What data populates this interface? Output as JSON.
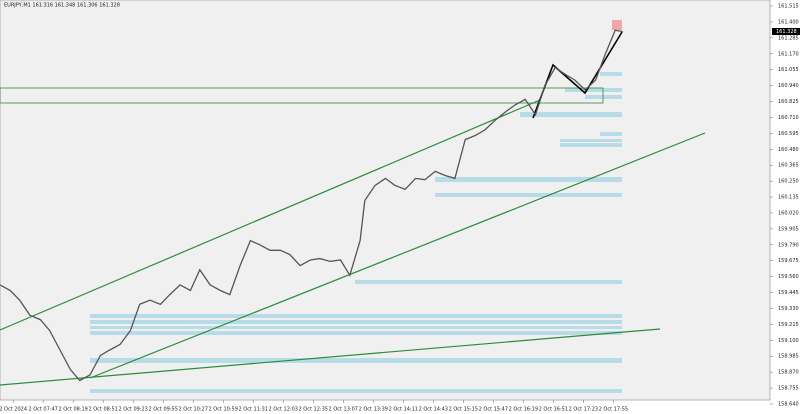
{
  "chart_data": {
    "type": "line",
    "title": "EURJPY,M1 161.316 161.348 161.306 161.328",
    "price_label": "161.328",
    "x": [
      -14,
      -3,
      7,
      18,
      29,
      39,
      50,
      61,
      71,
      82,
      93,
      103,
      114,
      125,
      135,
      146,
      157,
      167,
      178,
      189,
      199,
      210,
      221,
      231,
      242,
      253,
      263,
      274,
      285,
      295,
      306,
      317,
      327,
      338,
      349,
      359,
      370,
      375,
      386,
      397,
      407,
      418,
      429,
      439,
      450,
      461,
      471,
      482,
      493,
      503,
      514,
      525,
      535,
      546,
      557,
      567,
      578,
      589,
      599,
      610,
      621,
      631,
      642,
      650
    ],
    "series": [
      {
        "name": "EURJPY",
        "color": "#555555",
        "values": [
          159.5,
          159.46,
          159.39,
          159.28,
          159.25,
          159.17,
          159.03,
          158.89,
          158.81,
          158.85,
          158.99,
          159.03,
          159.07,
          159.17,
          159.36,
          159.39,
          159.36,
          159.43,
          159.5,
          159.46,
          159.61,
          159.5,
          159.46,
          159.43,
          159.64,
          159.82,
          159.79,
          159.75,
          159.75,
          159.72,
          159.64,
          159.68,
          159.69,
          159.67,
          159.68,
          159.57,
          159.82,
          160.11,
          160.22,
          160.27,
          160.22,
          160.19,
          160.27,
          160.26,
          160.32,
          160.29,
          160.27,
          160.55,
          160.58,
          160.62,
          160.69,
          160.75,
          160.8,
          160.84,
          160.73,
          160.94,
          161.07,
          161.02,
          160.98,
          160.91,
          160.98,
          161.16,
          161.34,
          161.33
        ]
      }
    ],
    "xlim": [
      -14,
      807
    ],
    "ylim": [
      158.64,
      161.515
    ],
    "xticks": [
      {
        "value": 0,
        "label": "2 Oct 2024"
      },
      {
        "value": 32,
        "label": "2 Oct 07:47"
      },
      {
        "value": 64,
        "label": "2 Oct 08:19"
      },
      {
        "value": 96,
        "label": "2 Oct 08:51"
      },
      {
        "value": 128,
        "label": "2 Oct 09:23"
      },
      {
        "value": 160,
        "label": "2 Oct 09:55"
      },
      {
        "value": 192,
        "label": "2 Oct 10:27"
      },
      {
        "value": 224,
        "label": "2 Oct 10:59"
      },
      {
        "value": 256,
        "label": "2 Oct 11:31"
      },
      {
        "value": 288,
        "label": "2 Oct 12:03"
      },
      {
        "value": 320,
        "label": "2 Oct 12:35"
      },
      {
        "value": 352,
        "label": "2 Oct 13:07"
      },
      {
        "value": 384,
        "label": "2 Oct 13:39"
      },
      {
        "value": 416,
        "label": "2 Oct 14:11"
      },
      {
        "value": 448,
        "label": "2 Oct 14:43"
      },
      {
        "value": 480,
        "label": "2 Oct 15:15"
      },
      {
        "value": 512,
        "label": "2 Oct 15:47"
      },
      {
        "value": 544,
        "label": "2 Oct 16:19"
      },
      {
        "value": 576,
        "label": "2 Oct 16:51"
      },
      {
        "value": 608,
        "label": "2 Oct 17:23"
      },
      {
        "value": 640,
        "label": "2 Oct 17:55"
      }
    ],
    "yticks": [
      161.515,
      {
        "value": 161.4,
        "label": "161.400"
      },
      161.285,
      {
        "value": 161.17,
        "label": "161.170"
      },
      161.055,
      {
        "value": 160.94,
        "label": "160.940"
      },
      160.825,
      {
        "value": 160.71,
        "label": "160.710"
      },
      160.595,
      {
        "value": 160.48,
        "label": "160.480"
      },
      160.365,
      {
        "value": 160.25,
        "label": "160.250"
      },
      160.135,
      {
        "value": 160.02,
        "label": "160.020"
      },
      159.905,
      {
        "value": 159.79,
        "label": "159.790"
      },
      159.675,
      {
        "value": 159.56,
        "label": "159.560"
      },
      159.445,
      {
        "value": 159.33,
        "label": "159.330"
      },
      159.215,
      {
        "value": 159.1,
        "label": "159.100"
      },
      158.985,
      {
        "value": 158.87,
        "label": "158.870"
      },
      158.755,
      {
        "value": 158.64,
        "label": "158.640"
      }
    ]
  }
}
